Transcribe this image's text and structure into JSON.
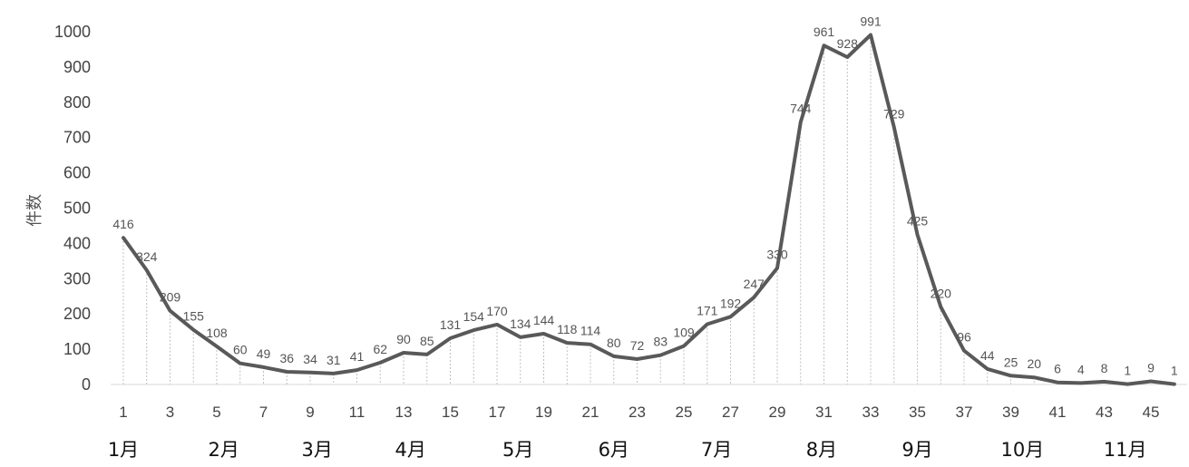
{
  "chart_data": {
    "type": "line",
    "ylabel": "件数",
    "ylim": [
      0,
      1000
    ],
    "yticks": [
      0,
      100,
      200,
      300,
      400,
      500,
      600,
      700,
      800,
      900,
      1000
    ],
    "x": [
      1,
      2,
      3,
      4,
      5,
      6,
      7,
      8,
      9,
      10,
      11,
      12,
      13,
      14,
      15,
      16,
      17,
      18,
      19,
      20,
      21,
      22,
      23,
      24,
      25,
      26,
      27,
      28,
      29,
      30,
      31,
      32,
      33,
      34,
      35,
      36,
      37,
      38,
      39,
      40,
      41,
      42,
      43,
      44,
      45,
      46
    ],
    "xtick_labels": [
      1,
      3,
      5,
      7,
      9,
      11,
      13,
      15,
      17,
      19,
      21,
      23,
      25,
      27,
      29,
      31,
      33,
      35,
      37,
      39,
      41,
      43,
      45
    ],
    "values": [
      416,
      324,
      209,
      155,
      108,
      60,
      49,
      36,
      34,
      31,
      41,
      62,
      90,
      85,
      131,
      154,
      170,
      134,
      144,
      118,
      114,
      80,
      72,
      83,
      109,
      171,
      192,
      247,
      330,
      744,
      961,
      928,
      991,
      729,
      425,
      220,
      96,
      44,
      25,
      20,
      6,
      4,
      8,
      1,
      9,
      1
    ],
    "months": [
      {
        "label": "1月",
        "week": 1
      },
      {
        "label": "2月",
        "week": 5.3
      },
      {
        "label": "3月",
        "week": 9.3
      },
      {
        "label": "4月",
        "week": 13.3
      },
      {
        "label": "5月",
        "week": 17.9
      },
      {
        "label": "6月",
        "week": 22
      },
      {
        "label": "7月",
        "week": 26.4
      },
      {
        "label": "8月",
        "week": 30.9
      },
      {
        "label": "9月",
        "week": 35
      },
      {
        "label": "10月",
        "week": 39.5
      },
      {
        "label": "11月",
        "week": 43.9
      }
    ],
    "line_color": "#595959",
    "dropline_color": "#bfbfbf",
    "grid": false,
    "legend": "none"
  }
}
